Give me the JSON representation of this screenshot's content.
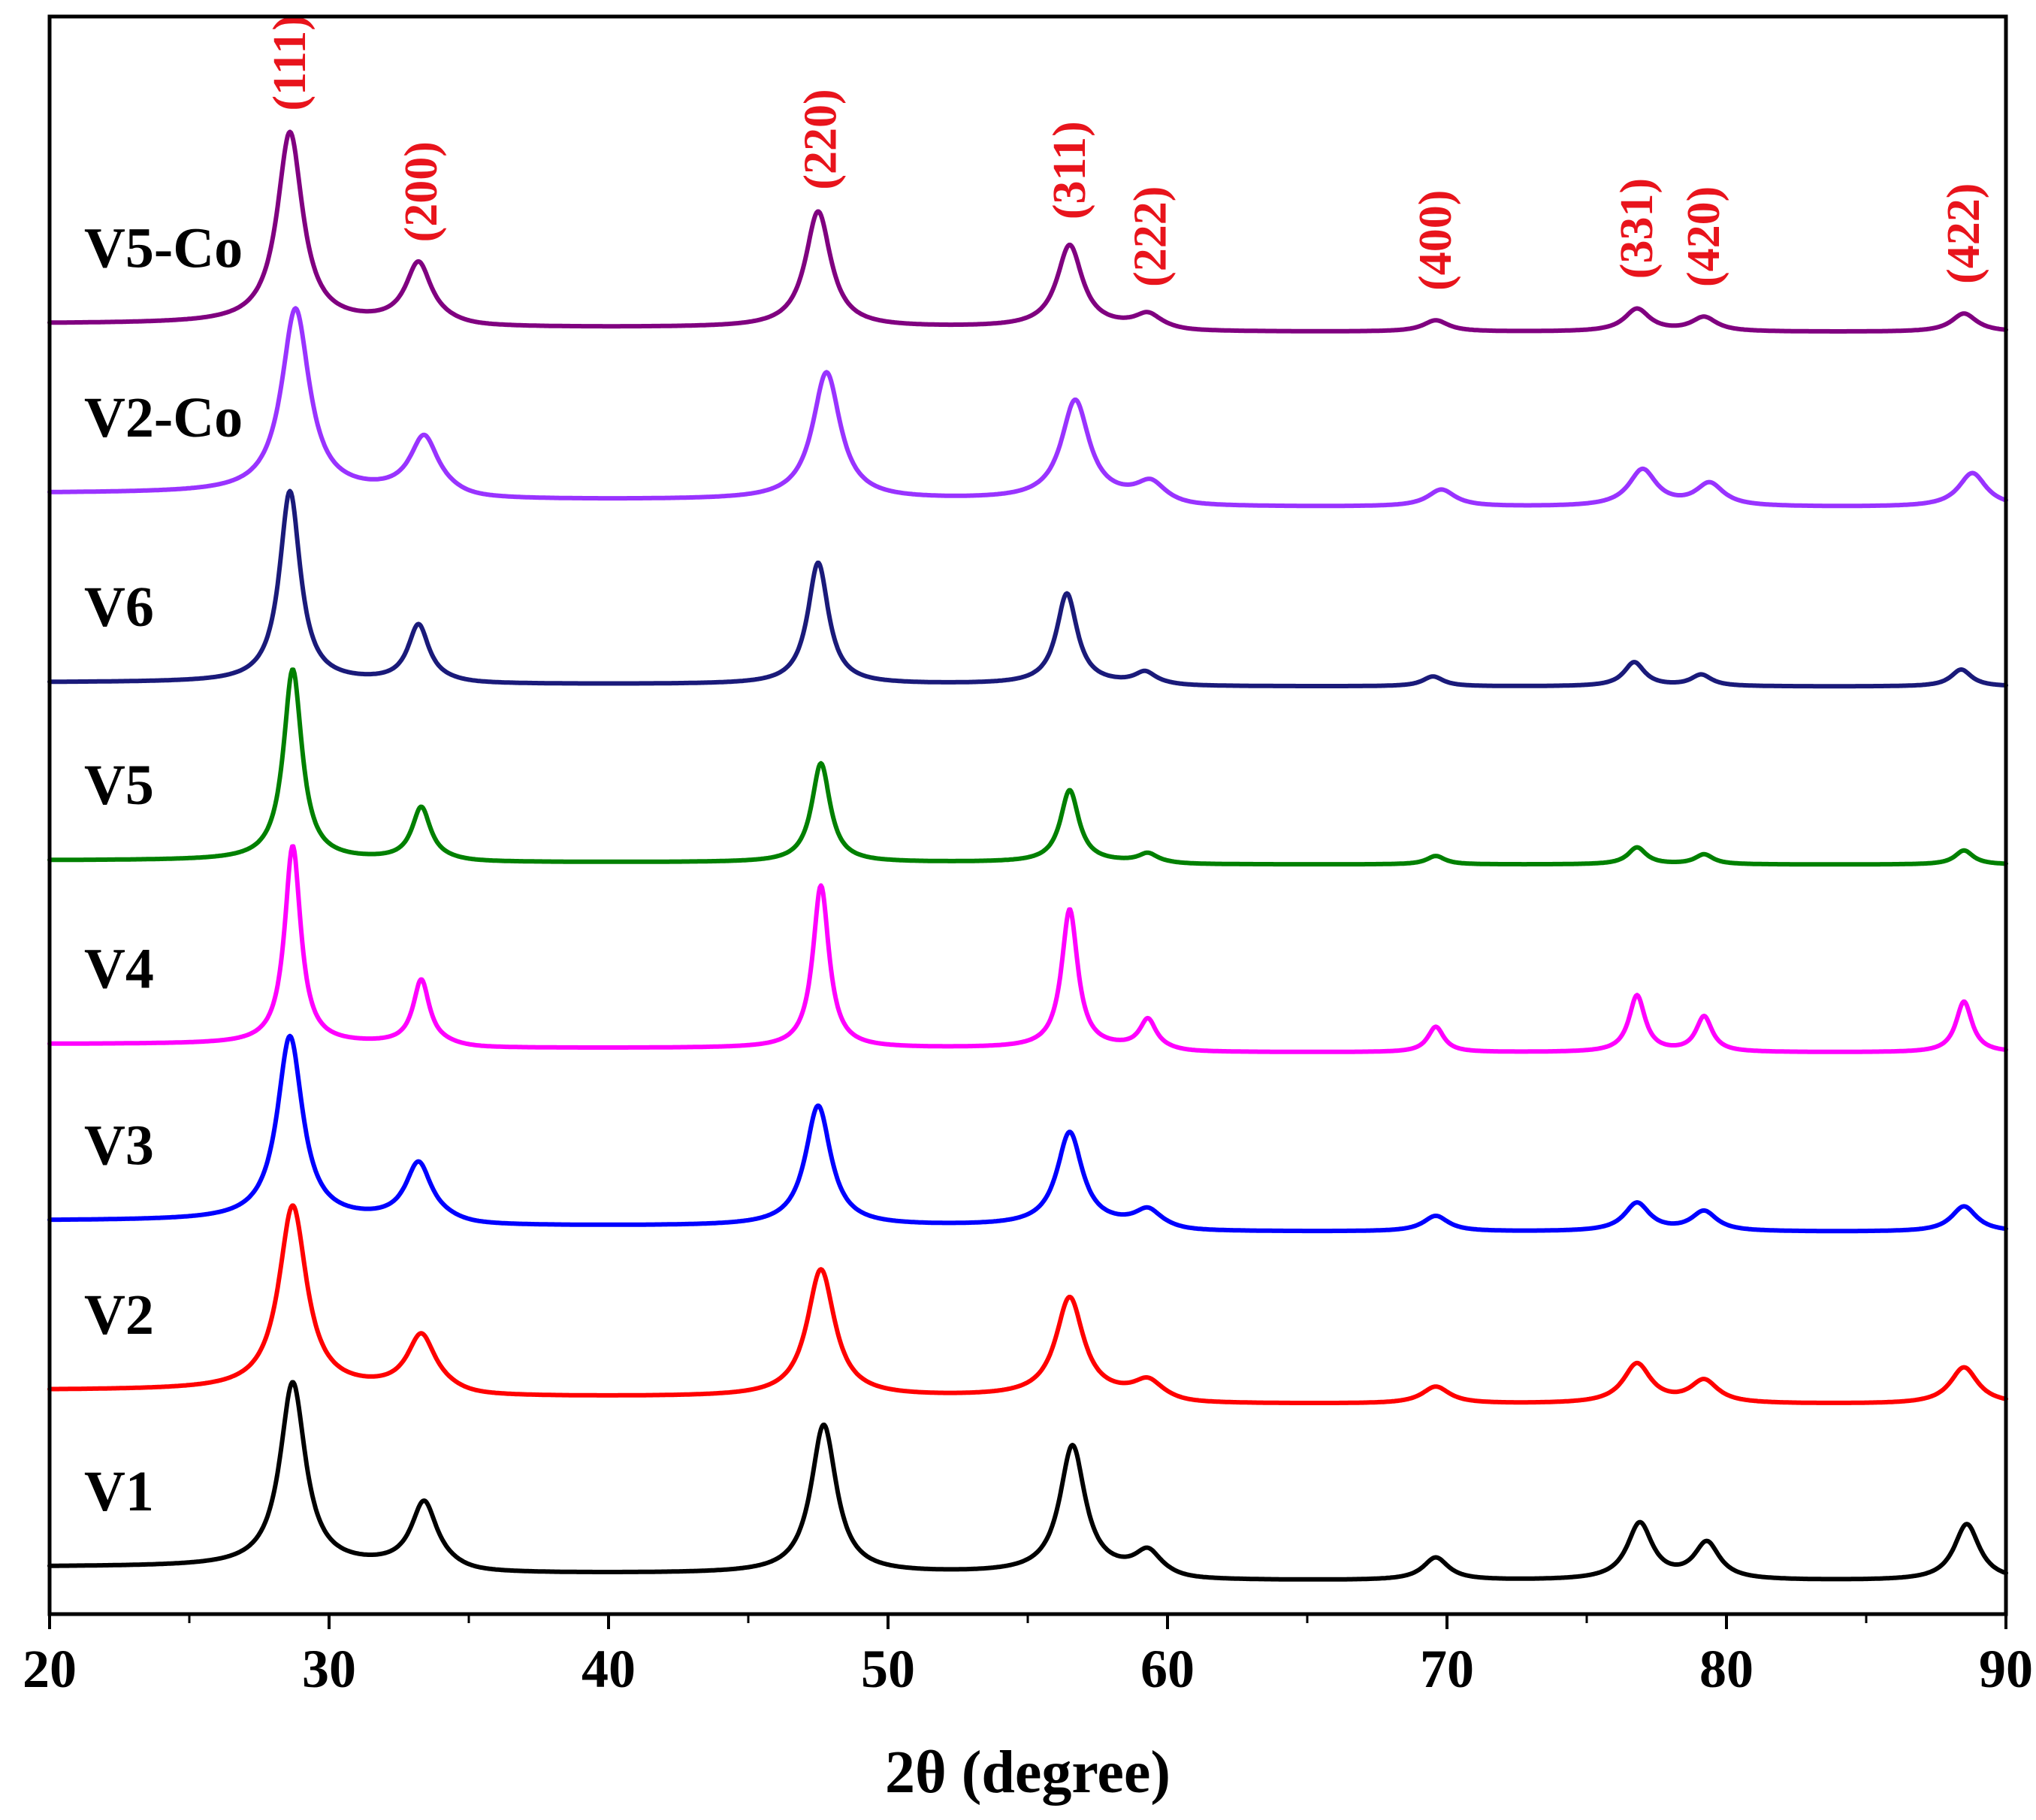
{
  "chart_data": {
    "type": "line",
    "title": "",
    "xlabel": "2θ (degree)",
    "ylabel": "",
    "xlim": [
      20,
      90
    ],
    "xticks": [
      20,
      30,
      40,
      50,
      60,
      70,
      80,
      90
    ],
    "xtick_labels": [
      "20",
      "30",
      "40",
      "50",
      "60",
      "70",
      "80",
      "90"
    ],
    "minor_xticks": [
      25,
      35,
      45,
      55,
      65,
      75,
      85
    ],
    "intensity_scale": "arbitrary units, traces offset vertically (V1 at bottom, V5-Co at top)",
    "peak_label_color": "#e8141c",
    "peak_labels": [
      {
        "text": "(111)",
        "x": 28.6
      },
      {
        "text": "(200)",
        "x": 33.3
      },
      {
        "text": "(220)",
        "x": 47.6
      },
      {
        "text": "(311)",
        "x": 56.5
      },
      {
        "text": "(222)",
        "x": 59.4
      },
      {
        "text": "(400)",
        "x": 69.6
      },
      {
        "text": "(331)",
        "x": 76.8
      },
      {
        "text": "(420)",
        "x": 79.2
      },
      {
        "text": "(422)",
        "x": 88.5
      }
    ],
    "series": [
      {
        "name": "V1",
        "color": "#000000",
        "offset": 0.0,
        "baseline_drop": 1.0,
        "peaks": [
          {
            "x": 28.7,
            "height": 13.0,
            "width": 0.55
          },
          {
            "x": 33.4,
            "height": 4.5,
            "width": 0.55
          },
          {
            "x": 47.7,
            "height": 10.5,
            "width": 0.55
          },
          {
            "x": 56.6,
            "height": 9.0,
            "width": 0.55
          },
          {
            "x": 59.3,
            "height": 1.5,
            "width": 0.55
          },
          {
            "x": 69.6,
            "height": 1.6,
            "width": 0.55
          },
          {
            "x": 76.9,
            "height": 4.0,
            "width": 0.55
          },
          {
            "x": 79.3,
            "height": 2.6,
            "width": 0.55
          },
          {
            "x": 88.6,
            "height": 4.0,
            "width": 0.55
          }
        ]
      },
      {
        "name": "V2",
        "color": "#ff0000",
        "offset": 12.5,
        "baseline_drop": 1.0,
        "peaks": [
          {
            "x": 28.7,
            "height": 13.0,
            "width": 0.6
          },
          {
            "x": 33.3,
            "height": 3.8,
            "width": 0.6
          },
          {
            "x": 47.6,
            "height": 9.0,
            "width": 0.6
          },
          {
            "x": 56.5,
            "height": 7.0,
            "width": 0.6
          },
          {
            "x": 59.3,
            "height": 1.1,
            "width": 0.6
          },
          {
            "x": 69.6,
            "height": 1.2,
            "width": 0.6
          },
          {
            "x": 76.8,
            "height": 2.8,
            "width": 0.6
          },
          {
            "x": 79.2,
            "height": 1.6,
            "width": 0.6
          },
          {
            "x": 88.5,
            "height": 2.6,
            "width": 0.6
          }
        ]
      },
      {
        "name": "V3",
        "color": "#0000ff",
        "offset": 24.5,
        "baseline_drop": 0.8,
        "peaks": [
          {
            "x": 28.6,
            "height": 13.0,
            "width": 0.55
          },
          {
            "x": 33.2,
            "height": 4.0,
            "width": 0.55
          },
          {
            "x": 47.5,
            "height": 8.5,
            "width": 0.55
          },
          {
            "x": 56.5,
            "height": 6.6,
            "width": 0.55
          },
          {
            "x": 59.3,
            "height": 1.1,
            "width": 0.55
          },
          {
            "x": 69.6,
            "height": 1.1,
            "width": 0.55
          },
          {
            "x": 76.8,
            "height": 2.0,
            "width": 0.55
          },
          {
            "x": 79.2,
            "height": 1.4,
            "width": 0.55
          },
          {
            "x": 88.5,
            "height": 1.8,
            "width": 0.55
          }
        ]
      },
      {
        "name": "V4",
        "color": "#ff00ff",
        "offset": 37.0,
        "baseline_drop": 0.6,
        "peaks": [
          {
            "x": 28.7,
            "height": 14.0,
            "width": 0.35
          },
          {
            "x": 33.3,
            "height": 4.5,
            "width": 0.35
          },
          {
            "x": 47.6,
            "height": 11.5,
            "width": 0.35
          },
          {
            "x": 56.5,
            "height": 9.8,
            "width": 0.35
          },
          {
            "x": 59.3,
            "height": 2.0,
            "width": 0.35
          },
          {
            "x": 69.6,
            "height": 1.8,
            "width": 0.35
          },
          {
            "x": 76.8,
            "height": 4.0,
            "width": 0.35
          },
          {
            "x": 79.2,
            "height": 2.5,
            "width": 0.35
          },
          {
            "x": 88.5,
            "height": 3.6,
            "width": 0.35
          }
        ]
      },
      {
        "name": "V5",
        "color": "#008000",
        "offset": 50.0,
        "baseline_drop": 0.3,
        "peaks": [
          {
            "x": 28.7,
            "height": 13.5,
            "width": 0.4
          },
          {
            "x": 33.3,
            "height": 3.7,
            "width": 0.4
          },
          {
            "x": 47.6,
            "height": 7.0,
            "width": 0.4
          },
          {
            "x": 56.5,
            "height": 5.1,
            "width": 0.4
          },
          {
            "x": 59.3,
            "height": 0.6,
            "width": 0.4
          },
          {
            "x": 69.6,
            "height": 0.6,
            "width": 0.4
          },
          {
            "x": 76.8,
            "height": 1.2,
            "width": 0.4
          },
          {
            "x": 79.2,
            "height": 0.7,
            "width": 0.4
          },
          {
            "x": 88.5,
            "height": 1.0,
            "width": 0.4
          }
        ]
      },
      {
        "name": "V6",
        "color": "#1a1a7a",
        "offset": 62.6,
        "baseline_drop": 0.3,
        "peaks": [
          {
            "x": 28.6,
            "height": 13.5,
            "width": 0.45
          },
          {
            "x": 33.2,
            "height": 4.0,
            "width": 0.45
          },
          {
            "x": 47.5,
            "height": 8.6,
            "width": 0.45
          },
          {
            "x": 56.4,
            "height": 6.4,
            "width": 0.45
          },
          {
            "x": 59.2,
            "height": 0.8,
            "width": 0.45
          },
          {
            "x": 69.5,
            "height": 0.7,
            "width": 0.45
          },
          {
            "x": 76.7,
            "height": 1.7,
            "width": 0.45
          },
          {
            "x": 79.1,
            "height": 0.8,
            "width": 0.45
          },
          {
            "x": 88.4,
            "height": 1.2,
            "width": 0.45
          }
        ]
      },
      {
        "name": "V2-Co",
        "color": "#9933ff",
        "offset": 76.0,
        "baseline_drop": 1.0,
        "peaks": [
          {
            "x": 28.8,
            "height": 13.0,
            "width": 0.6
          },
          {
            "x": 33.4,
            "height": 3.9,
            "width": 0.6
          },
          {
            "x": 47.8,
            "height": 9.0,
            "width": 0.6
          },
          {
            "x": 56.7,
            "height": 7.0,
            "width": 0.6
          },
          {
            "x": 59.4,
            "height": 1.2,
            "width": 0.6
          },
          {
            "x": 69.8,
            "height": 1.2,
            "width": 0.6
          },
          {
            "x": 77.0,
            "height": 2.6,
            "width": 0.6
          },
          {
            "x": 79.4,
            "height": 1.6,
            "width": 0.6
          },
          {
            "x": 88.8,
            "height": 2.4,
            "width": 0.6
          }
        ]
      },
      {
        "name": "V5-Co",
        "color": "#800080",
        "offset": 88.0,
        "baseline_drop": 0.6,
        "peaks": [
          {
            "x": 28.6,
            "height": 13.5,
            "width": 0.55
          },
          {
            "x": 33.2,
            "height": 4.2,
            "width": 0.55
          },
          {
            "x": 47.5,
            "height": 8.2,
            "width": 0.55
          },
          {
            "x": 56.5,
            "height": 5.8,
            "width": 0.55
          },
          {
            "x": 59.3,
            "height": 0.9,
            "width": 0.55
          },
          {
            "x": 69.6,
            "height": 0.8,
            "width": 0.55
          },
          {
            "x": 76.8,
            "height": 1.6,
            "width": 0.55
          },
          {
            "x": 79.2,
            "height": 1.0,
            "width": 0.55
          },
          {
            "x": 88.5,
            "height": 1.3,
            "width": 0.55
          }
        ]
      }
    ]
  }
}
